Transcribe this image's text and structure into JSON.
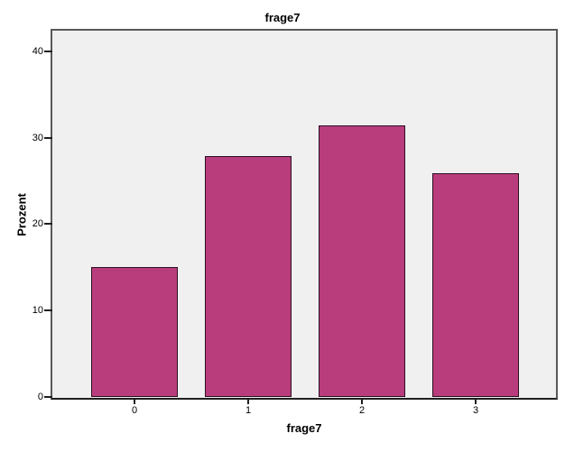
{
  "chart_data": {
    "type": "bar",
    "title": "frage7",
    "xlabel": "frage7",
    "ylabel": "Prozent",
    "categories": [
      "0",
      "1",
      "2",
      "3"
    ],
    "values": [
      15.0,
      27.9,
      31.4,
      25.9
    ],
    "ylim": [
      0,
      42.5
    ],
    "yticks": [
      0,
      10,
      20,
      30,
      40
    ],
    "grid": false,
    "legend": null,
    "colors": {
      "bar_fill": "#b93d7c",
      "bar_border": "#2a1023",
      "plot_background": "#f0f0f0",
      "page_background": "#ffffff",
      "frame": "#595959",
      "axis": "#1f1f1f",
      "text": "#000000"
    }
  }
}
